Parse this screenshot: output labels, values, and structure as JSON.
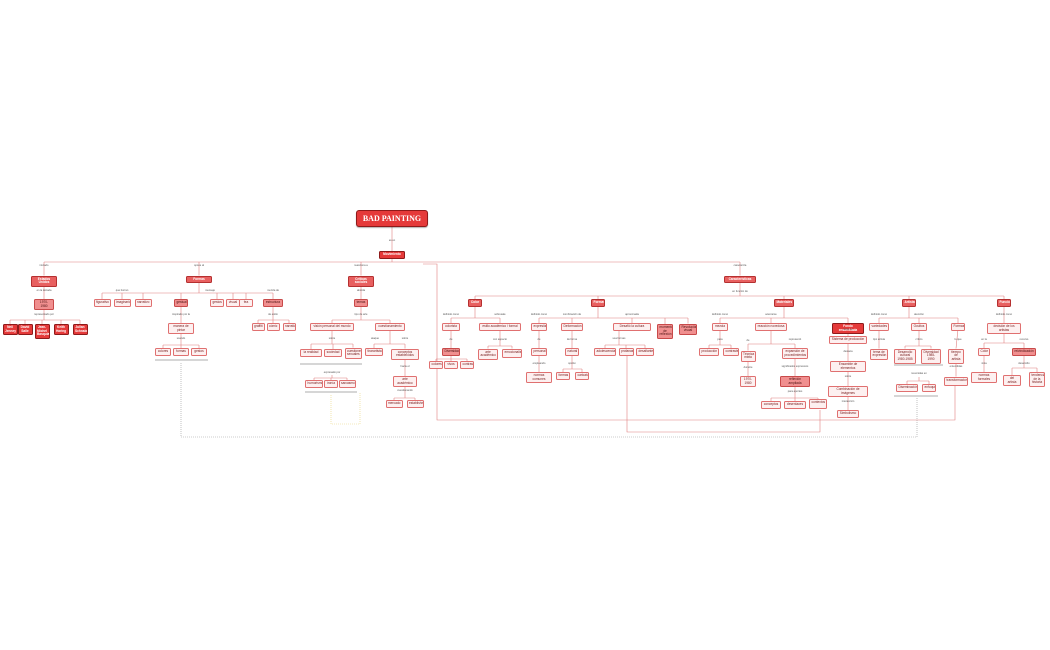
{
  "title": "BAD PAINTING",
  "colors": {
    "root": "#e53a3a",
    "line": "#e08080",
    "node_border": "#e07070",
    "connector_grey": "#9a9a9a",
    "connector_yellow": "#e8d27a"
  },
  "root_link": "es un",
  "top": "Movimiento",
  "branches": [
    {
      "link": "iniciado",
      "node": "Estados Unidos",
      "sub_link": "en la década",
      "sub": "1970-1980",
      "leaf_link": "representado por",
      "leaves": [
        "Neil Jenney",
        "David Salle",
        "Jean-Michel Basquiat",
        "Keith Haring",
        "Julian Schnabel"
      ]
    },
    {
      "link": "opone al",
      "node": "Formas",
      "groups": [
        {
          "link": "que borran",
          "items": [
            "figurativo",
            "imaginario",
            "narrativo"
          ]
        },
        {
          "link": "mensaje",
          "items": [
            "gestual"
          ],
          "below_link": "inspirado por la",
          "below": "manera de pintar",
          "below_link2": "usando",
          "leaves": [
            "colores",
            "formas",
            "gestos"
          ]
        },
        {
          "link": "de espacio",
          "items": [
            "gestos",
            "visual",
            "fea"
          ]
        },
        {
          "link": "mezcla de",
          "items": [
            "estructura"
          ],
          "below_link": "de estilo",
          "leaves": [
            "graffiti",
            "cómic",
            "narrativa"
          ]
        }
      ]
    },
    {
      "link": "reacciona a",
      "node": "Críticas sociales",
      "sub_link": "aborda",
      "sub": "temas",
      "groups": [
        {
          "link": "tipo de arte",
          "node": "visión personal del mundo",
          "link2": "sobre",
          "items": [
            "la realidad",
            "sociedad",
            "cuestiones sexuales"
          ],
          "bottom_link": "expresado por",
          "bottom": [
            "humorismo",
            "ironía",
            "sarcasmo"
          ]
        },
        {
          "node": "cuestionamiento",
          "link2": "ataque",
          "items": [
            "tirarartista"
          ],
          "link3": "sobre",
          "items2": [
            "conceptos establecidos"
          ],
          "link4": "hacia el",
          "sub": "arte académico",
          "link5": "cuestionando",
          "leaves": [
            "mercado",
            "establishment"
          ]
        }
      ]
    },
    {
      "link": "caracteriza",
      "node": "Características",
      "sub_link": "en función de",
      "groups": [
        {
          "node": "Color",
          "cols": [
            {
              "link": "definido como",
              "node": "colorista",
              "link2": "de",
              "sub": "Diversidad",
              "leaves": [
                "colores",
                "vivos",
                "contrastes"
              ]
            },
            {
              "link": "sobresale",
              "node": "estilo académico / formal",
              "link2": "con aspecto",
              "leaves": [
                "arte académico",
                "emocionalismo"
              ]
            }
          ]
        },
        {
          "node": "Formas",
          "cols": [
            {
              "link": "definido como",
              "node": "expresión",
              "link2": "de",
              "sub": "personal",
              "link3": "empleando",
              "leaves": [
                "normas comunes"
              ]
            },
            {
              "link": "combinación de",
              "node": "Deformación",
              "link2": "de forma",
              "sub": "natural",
              "link3": "opción",
              "leaves": [
                "formas",
                "caricatura"
              ]
            },
            {
              "link": "aproximada",
              "node": "Desafió la cultura",
              "link2": "usa formas",
              "leaves": [
                "adolescencia",
                "profanas",
                "desafiante"
              ]
            },
            {
              "node": "momento de reflexión",
              "leaves": []
            },
            {
              "node": "Revolución visual",
              "leaves": []
            }
          ]
        },
        {
          "node": "Materiales",
          "cols": [
            {
              "link": "definido como",
              "node": "mezcla",
              "link2": "para",
              "leaves": [
                "producción",
                "contraste"
              ],
              "link3": "de",
              "sub": "Técnica mixta",
              "link4": "durante",
              "sub2": "1970-1980"
            },
            {
              "link": "acercarse",
              "node": "reacción novedosa",
              "link2": "representó",
              "sub": "expansión de procedimientos",
              "link3": "significados expresivos",
              "sub2": "reflexión ampliada",
              "link4": "para aportes",
              "leaves": [
                "conceptos",
                "desenlaces",
                "contextos"
              ]
            },
            {
              "node": "Fondo ensamblada",
              "link2": "tiene un",
              "sub": "Sistema de producción",
              "link3": "destaca",
              "sub2": "Ensamble de elementos",
              "link4": "sobre",
              "sub3": "Combinación de imágenes",
              "link5": "interacción",
              "leaves": [
                "Simbolismo"
              ]
            }
          ]
        },
        {
          "node": "Artistas",
          "cols": [
            {
              "link": "definido como",
              "node": "variedades",
              "link2": "tipo artista",
              "leaves": [
                "tema de expresión"
              ]
            },
            {
              "link": "atención",
              "node": "Ocultos",
              "link2": "crítico",
              "leaves": [
                "Desarrollo cultural 1980-1985",
                "Diversidad 1985-1990"
              ],
              "link3": "resumidas en",
              "leaves2": [
                "Diseminación",
                "enfoque"
              ]
            },
            {
              "node": "Formas",
              "link2": "lo que",
              "sub": "tiempo de artista",
              "link3": "entendidas",
              "leaves": [
                "transformaciones"
              ]
            }
          ]
        },
        {
          "node": "Función",
          "cols": [
            {
              "link": "definido como",
              "node": "decisión de los artistas",
              "link2": "en la",
              "sub": "Color",
              "link3": "vista",
              "leaves": [
                "normas formales"
              ],
              "link4": "recurso",
              "sub2": "reivindicación",
              "link5": "desarrollo",
              "leaves2": [
                "del artista",
                "tendencias de la historia"
              ]
            }
          ]
        }
      ]
    }
  ]
}
